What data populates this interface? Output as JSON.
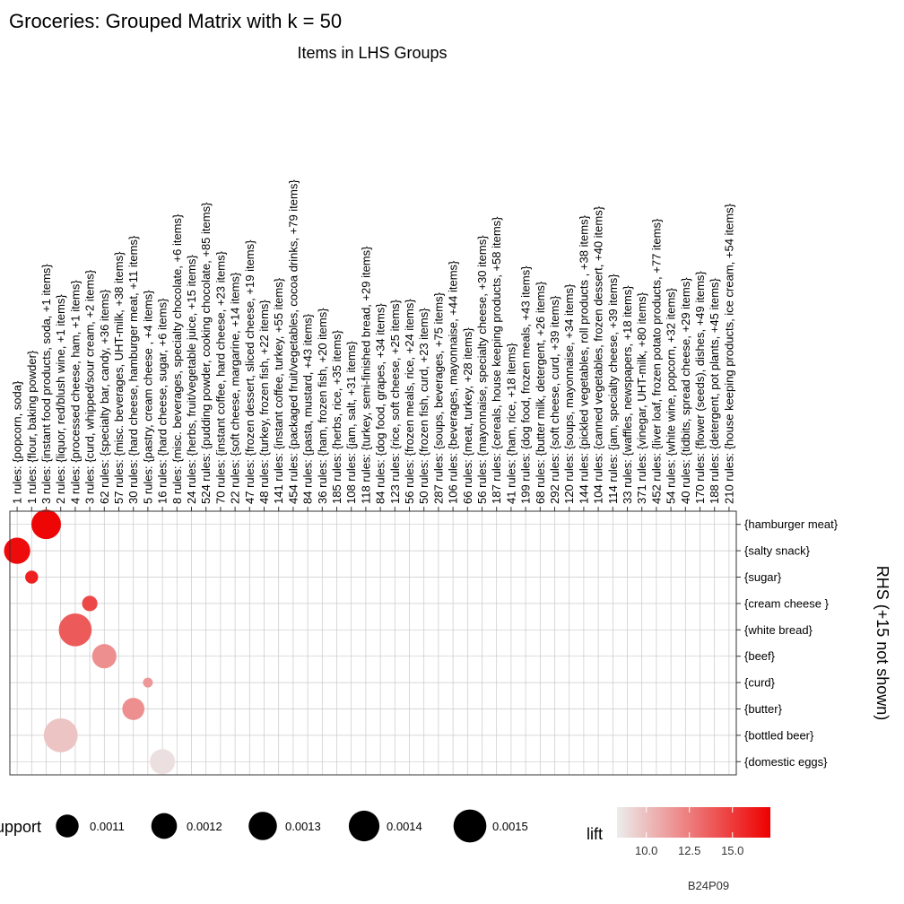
{
  "chart_data": {
    "type": "scatter",
    "title": "Groceries: Grouped Matrix with k = 50",
    "subtitle": "Items in LHS Groups",
    "ylabel": "RHS (+15 not shown)",
    "columns": [
      "1 rules: {popcorn, soda}",
      "1 rules: {flour, baking powder}",
      "3 rules: {instant food products, soda, +1 items}",
      "2 rules: {liquor, red/blush wine, +1 items}",
      "4 rules: {processed cheese, ham, +1 items}",
      "3 rules: {curd, whipped/sour cream, +2 items}",
      "62 rules: {specialty bar, candy, +36 items}",
      "57 rules: {misc. beverages, UHT-milk, +38 items}",
      "30 rules: {hard cheese, hamburger meat, +11 items}",
      "5 rules: {pastry, cream cheese , +4 items}",
      "16 rules: {hard cheese, sugar, +6 items}",
      "8 rules: {misc. beverages, specialty chocolate, +6 items}",
      "24 rules: {herbs, fruit/vegetable juice, +15 items}",
      "524 rules: {pudding powder, cooking chocolate, +85 items}",
      "70 rules: {instant coffee, hard cheese, +23 items}",
      "22 rules: {soft cheese, margarine, +14 items}",
      "47 rules: {frozen dessert, sliced cheese, +19 items}",
      "48 rules: {turkey, frozen fish, +22 items}",
      "141 rules: {instant coffee, turkey, +55 items}",
      "454 rules: {packaged fruit/vegetables, cocoa drinks, +79 items}",
      "84 rules: {pasta, mustard, +43 items}",
      "36 rules: {ham, frozen fish, +20 items}",
      "185 rules: {herbs, rice, +35 items}",
      "108 rules: {jam, salt, +31 items}",
      "118 rules: {turkey, semi-finished bread, +29 items}",
      "84 rules: {dog food, grapes, +34 items}",
      "123 rules: {rice, soft cheese, +25 items}",
      "56 rules: {frozen meals, rice, +24 items}",
      "50 rules: {frozen fish, curd, +23 items}",
      "287 rules: {soups, beverages, +75 items}",
      "106 rules: {beverages, mayonnaise, +44 items}",
      "66 rules: {meat, turkey, +28 items}",
      "56 rules: {mayonnaise, specialty cheese, +30 items}",
      "187 rules: {cereals, house keeping products, +58 items}",
      "41 rules: {ham, rice, +18 items}",
      "199 rules: {dog food, frozen meals, +43 items}",
      "68 rules: {butter milk, detergent, +26 items}",
      "292 rules: {soft cheese, curd, +39 items}",
      "120 rules: {soups, mayonnaise, +34 items}",
      "144 rules: {pickled vegetables, roll products , +38 items}",
      "104 rules: {canned vegetables, frozen dessert, +40 items}",
      "114 rules: {jam, specialty cheese, +39 items}",
      "33 rules: {waffles, newspapers, +18 items}",
      "371 rules: {vinegar, UHT-milk, +80 items}",
      "452 rules: {liver loaf, frozen potato products, +77 items}",
      "54 rules: {white wine, popcorn, +32 items}",
      "40 rules: {tidbits, spread cheese, +29 items}",
      "170 rules: {flower (seeds), dishes, +49 items}",
      "188 rules: {detergent, pot plants, +45 items}",
      "210 rules: {house keeping products, ice cream, +54 items}"
    ],
    "rows": [
      "{hamburger meat}",
      "{salty snack}",
      "{sugar}",
      "{cream cheese }",
      "{white bread}",
      "{beef}",
      "{curd}",
      "{butter}",
      "{bottled beer}",
      "{domestic eggs}"
    ],
    "points": [
      {
        "col": 3,
        "row": 1,
        "support": 0.00135,
        "lift": 17.0
      },
      {
        "col": 1,
        "row": 2,
        "support": 0.00122,
        "lift": 16.8
      },
      {
        "col": 2,
        "row": 3,
        "support": 0.00085,
        "lift": 16.0
      },
      {
        "col": 6,
        "row": 4,
        "support": 0.0009,
        "lift": 14.5
      },
      {
        "col": 5,
        "row": 5,
        "support": 0.0015,
        "lift": 13.8
      },
      {
        "col": 7,
        "row": 6,
        "support": 0.00115,
        "lift": 11.8
      },
      {
        "col": 10,
        "row": 7,
        "support": 0.0008,
        "lift": 11.5
      },
      {
        "col": 9,
        "row": 8,
        "support": 0.00108,
        "lift": 11.8
      },
      {
        "col": 4,
        "row": 9,
        "support": 0.00155,
        "lift": 9.8
      },
      {
        "col": 11,
        "row": 10,
        "support": 0.00118,
        "lift": 8.8
      }
    ],
    "size_legend": {
      "title": "support",
      "values": [
        "0.0011",
        "0.0012",
        "0.0013",
        "0.0014",
        "0.0015"
      ]
    },
    "color_legend": {
      "title": "lift",
      "ticks": [
        "10.0",
        "12.5",
        "15.0"
      ],
      "tick_values": [
        10.0,
        12.5,
        15.0
      ],
      "range": [
        8.3,
        17.2
      ],
      "low_color": "#ececec",
      "high_color": "#ee0000"
    },
    "grid": true
  },
  "watermark": "B24P09"
}
